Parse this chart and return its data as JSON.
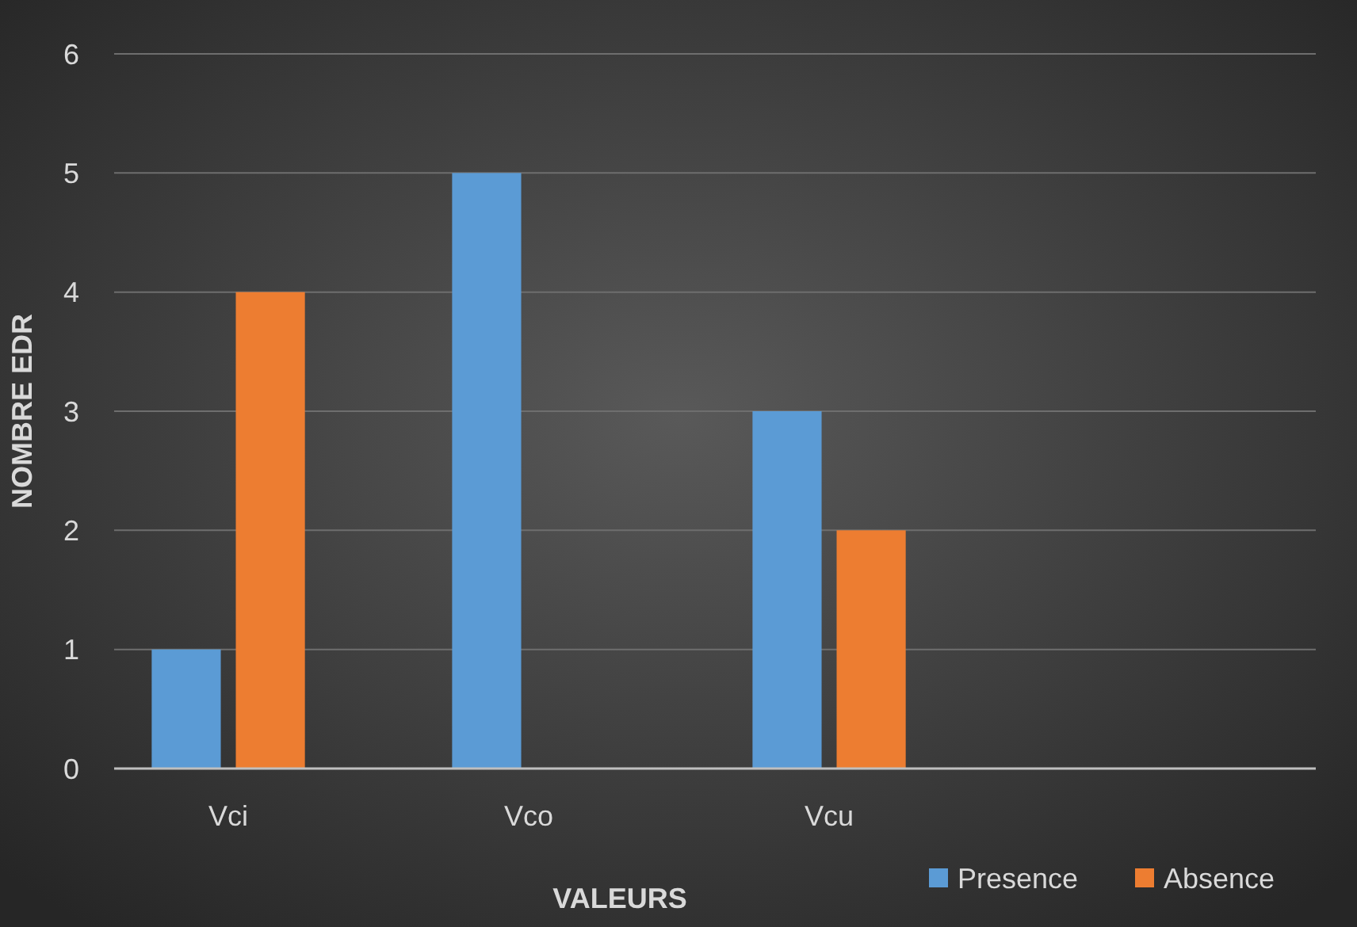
{
  "chart_data": {
    "type": "bar",
    "xlabel": "VALEURS",
    "ylabel": "NOMBRE EDR",
    "categories": [
      "Vci",
      "Vco",
      "Vcu",
      null
    ],
    "series": [
      {
        "name": "Presence",
        "color": "#5b9bd5",
        "values": [
          1,
          5,
          3,
          null
        ]
      },
      {
        "name": "Absence",
        "color": "#ed7d31",
        "values": [
          4,
          0,
          2,
          null
        ]
      }
    ],
    "ylim": [
      0,
      6
    ],
    "yticks": [
      0,
      1,
      2,
      3,
      4,
      5,
      6
    ],
    "grid": "y",
    "legend": "bottom right"
  }
}
